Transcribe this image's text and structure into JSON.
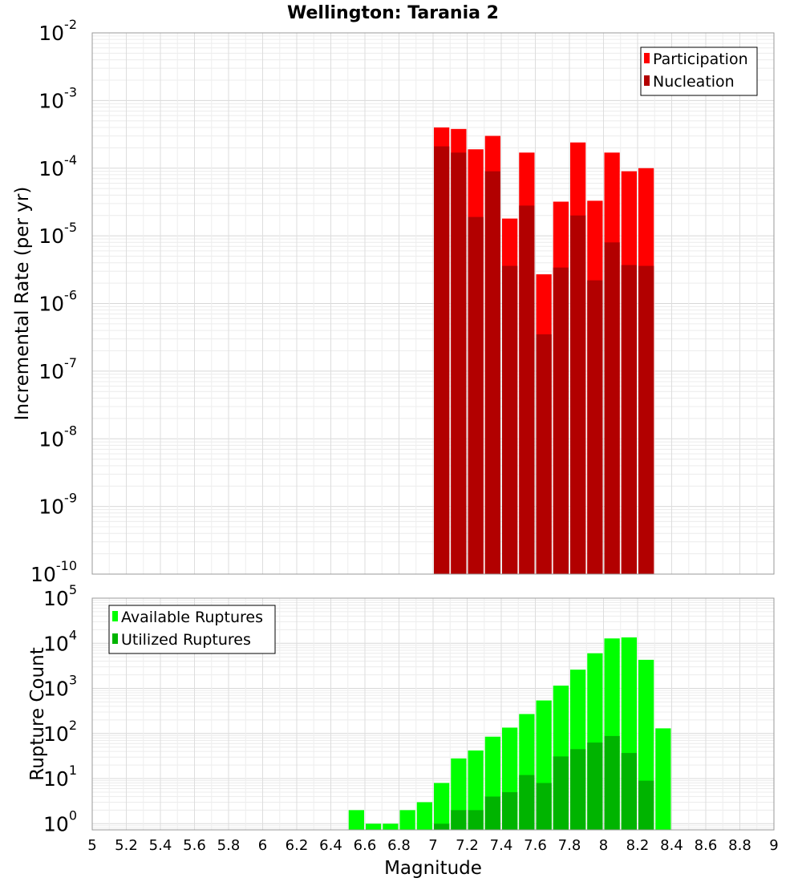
{
  "chart_data": {
    "title": "Wellington: Tarania 2",
    "xlabel": "Magnitude",
    "xlim": [
      5,
      9
    ],
    "xticks": [
      "5",
      "5.2",
      "5.4",
      "5.6",
      "5.8",
      "6",
      "6.2",
      "6.4",
      "6.6",
      "6.8",
      "7",
      "7.2",
      "7.4",
      "7.6",
      "7.8",
      "8",
      "8.2",
      "8.4",
      "8.6",
      "8.8",
      "9"
    ],
    "bin_width": 0.1,
    "grid": true,
    "panels": [
      {
        "type": "bar",
        "ylabel": "Incremental Rate (per yr)",
        "yscale": "log",
        "ylim": [
          1e-10,
          0.01
        ],
        "yticks": [
          {
            "base": "10",
            "exp": "-10"
          },
          {
            "base": "10",
            "exp": "-9"
          },
          {
            "base": "10",
            "exp": "-8"
          },
          {
            "base": "10",
            "exp": "-7"
          },
          {
            "base": "10",
            "exp": "-6"
          },
          {
            "base": "10",
            "exp": "-5"
          },
          {
            "base": "10",
            "exp": "-4"
          },
          {
            "base": "10",
            "exp": "-3"
          },
          {
            "base": "10",
            "exp": "-2"
          }
        ],
        "legend_position": "top-right",
        "x": [
          7.05,
          7.15,
          7.25,
          7.35,
          7.45,
          7.55,
          7.65,
          7.75,
          7.85,
          7.95,
          8.05,
          8.15,
          8.25
        ],
        "series": [
          {
            "name": "Participation",
            "color": "#ff0000",
            "values": [
              0.0004,
              0.00038,
              0.00019,
              0.0003,
              1.8e-05,
              0.00017,
              2.7e-06,
              3.2e-05,
              0.00024,
              3.3e-05,
              0.00017,
              9e-05,
              0.0001
            ]
          },
          {
            "name": "Nucleation",
            "color": "#b20000",
            "values": [
              0.00021,
              0.00017,
              1.9e-05,
              9e-05,
              3.6e-06,
              2.8e-05,
              3.5e-07,
              3.4e-06,
              2e-05,
              2.2e-06,
              8e-06,
              3.7e-06,
              3.6e-06
            ]
          }
        ]
      },
      {
        "type": "bar",
        "ylabel": "Rupture Count",
        "yscale": "log",
        "ylim": [
          0.73,
          100000
        ],
        "yticks": [
          {
            "base": "10",
            "exp": "0",
            "value": 1
          },
          {
            "base": "10",
            "exp": "1",
            "value": 10
          },
          {
            "base": "10",
            "exp": "2",
            "value": 100
          },
          {
            "base": "10",
            "exp": "3",
            "value": 1000
          },
          {
            "base": "10",
            "exp": "4",
            "value": 10000
          },
          {
            "base": "10",
            "exp": "5",
            "value": 100000
          }
        ],
        "legend_position": "top-left",
        "x": [
          6.55,
          6.65,
          6.75,
          6.85,
          6.95,
          7.05,
          7.15,
          7.25,
          7.35,
          7.45,
          7.55,
          7.65,
          7.75,
          7.85,
          7.95,
          8.05,
          8.15,
          8.25,
          8.35
        ],
        "series": [
          {
            "name": "Available Ruptures",
            "color": "#00ff00",
            "values": [
              2,
              1,
              1,
              2,
              3,
              8,
              28,
              42,
              85,
              135,
              270,
              540,
              1150,
              2600,
              6000,
              12800,
              13500,
              4300,
              130
            ]
          },
          {
            "name": "Utilized Ruptures",
            "color": "#00b400",
            "values": [
              0,
              0,
              0,
              0,
              0,
              1,
              2,
              2,
              4,
              5,
              12,
              8,
              31,
              45,
              63,
              88,
              37,
              9,
              0
            ]
          }
        ]
      }
    ]
  }
}
